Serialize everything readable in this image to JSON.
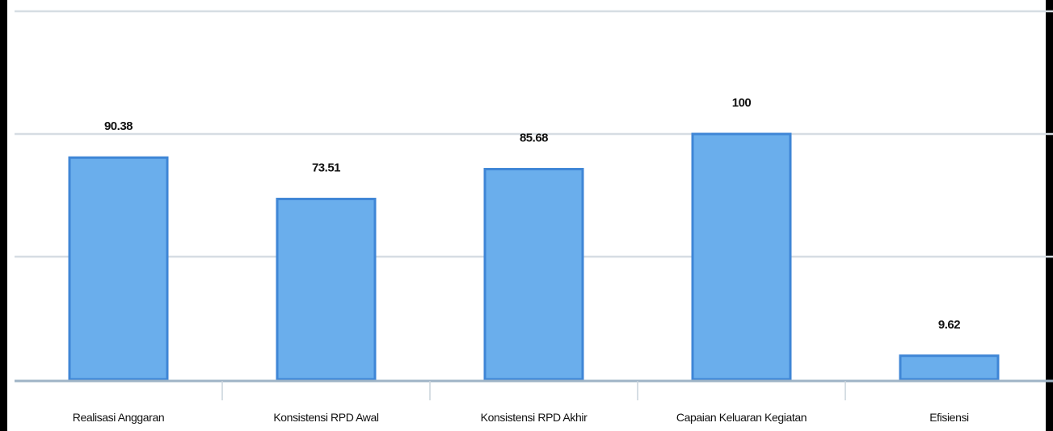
{
  "chart_data": {
    "type": "bar",
    "categories": [
      "Realisasi Anggaran",
      "Konsistensi RPD Awal",
      "Konsistensi RPD Akhir",
      "Capaian Keluaran Kegiatan",
      "Efisiensi"
    ],
    "values": [
      90.38,
      73.51,
      85.68,
      100,
      9.62
    ],
    "data_labels": [
      "90.38",
      "73.51",
      "85.68",
      "100",
      "9.62"
    ],
    "title": "",
    "xlabel": "",
    "ylabel": "",
    "ylim": [
      0,
      150
    ],
    "grid": true,
    "legend": "none",
    "colors": {
      "bar_fill": "#6aaeec",
      "bar_edge": "#3f86d6",
      "gridline": "#d6dde3",
      "axis": "#9fb4c6",
      "frame": "#000000"
    }
  }
}
